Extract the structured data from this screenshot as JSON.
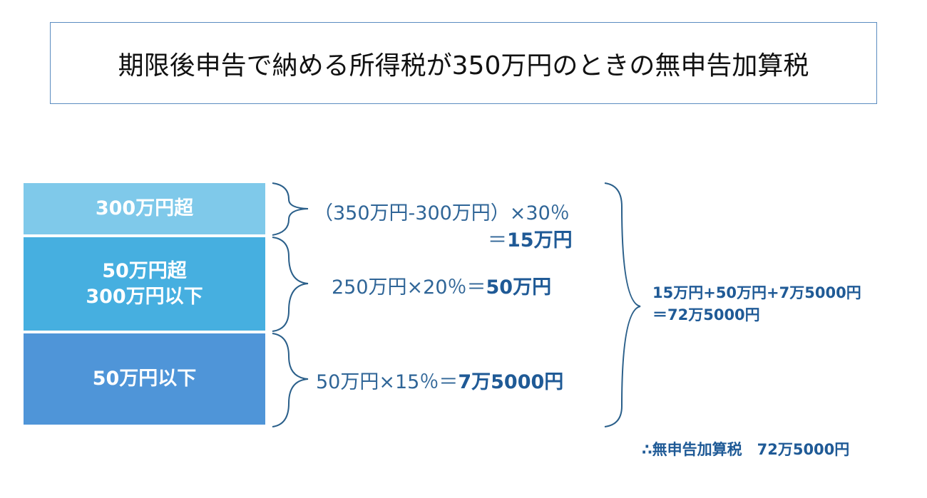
{
  "title": "期限後申告で納める所得税が350万円のときの無申告加算税",
  "bands": [
    {
      "label": "300万円超",
      "color": "#7fc9ea"
    },
    {
      "label_line1": "50万円超",
      "label_line2": "300万円以下",
      "color": "#46afe0"
    },
    {
      "label": "50万円以下",
      "color": "#4f95d8"
    }
  ],
  "calculations": {
    "top_formula": "（350万円-300万円）×30％",
    "top_eq": "＝",
    "top_result": "15万円",
    "mid_formula": "250万円×20％＝",
    "mid_result": "50万円",
    "bottom_formula": "50万円×15％＝",
    "bottom_result": "7万5000円"
  },
  "total": {
    "line1": "15万円+50万円+7万5000円",
    "line2": "＝72万5000円"
  },
  "conclusion": "∴無申告加算税　72万5000円",
  "colors": {
    "text": "#2f6597",
    "brace": "#2a5f8a"
  }
}
